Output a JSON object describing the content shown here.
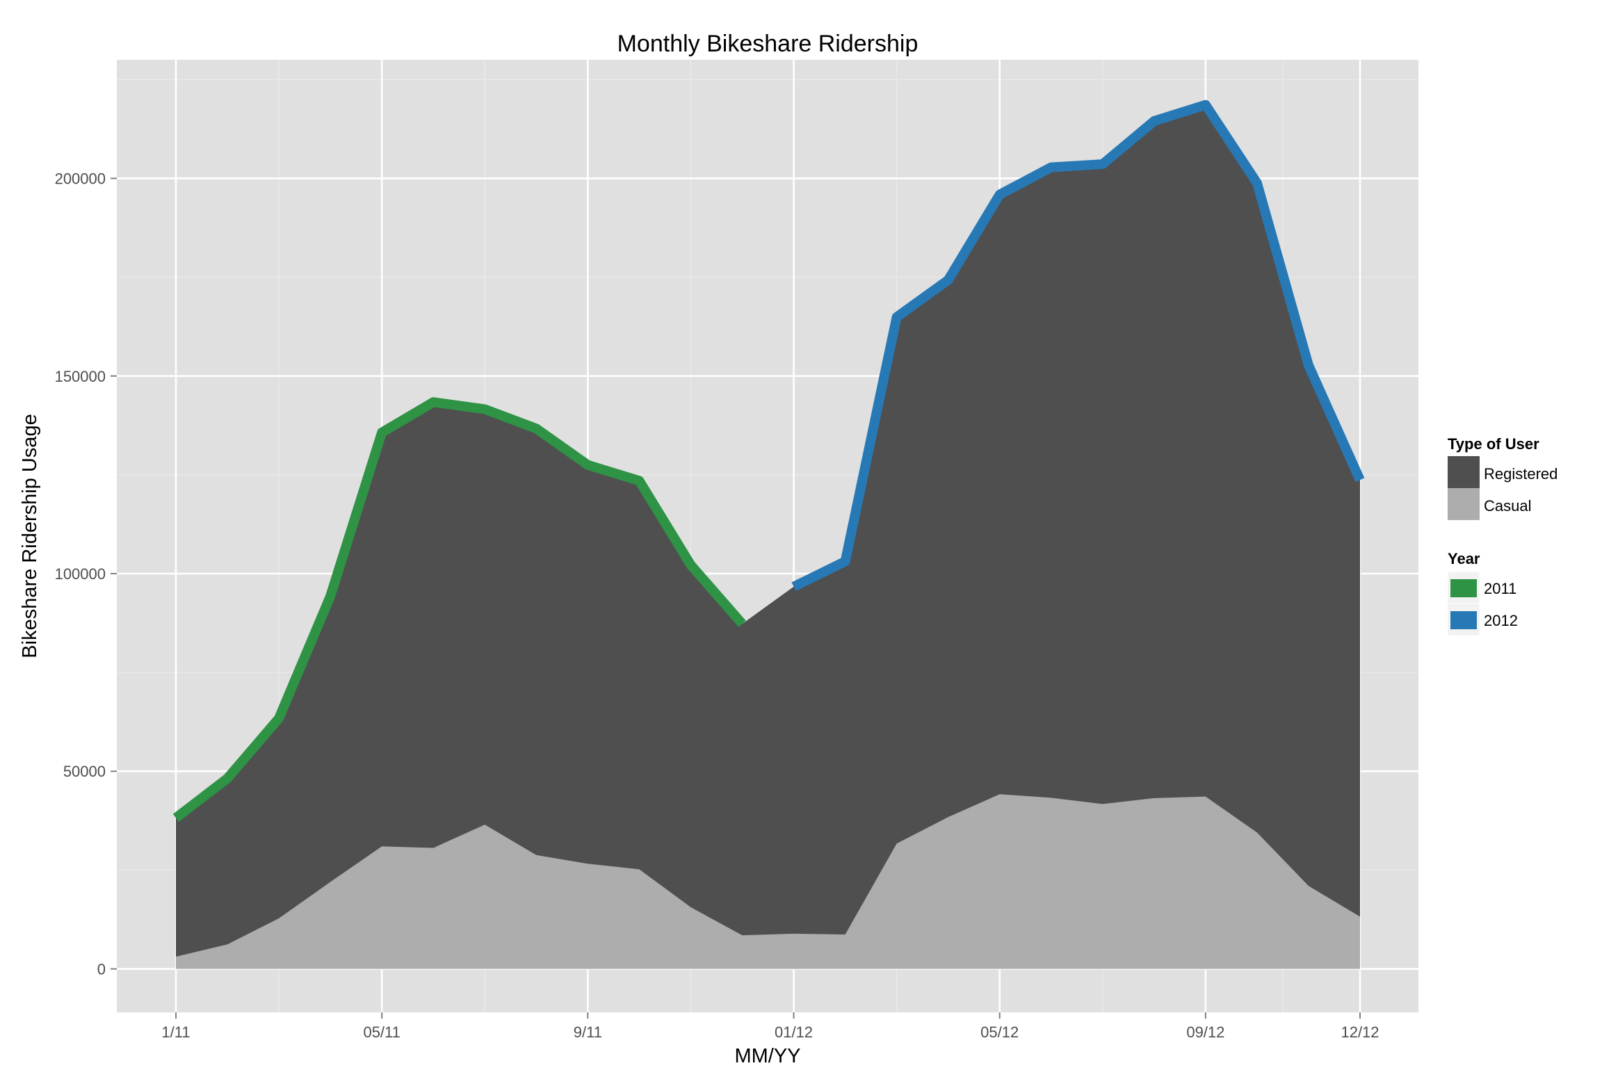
{
  "chart_data": {
    "type": "area",
    "title": "Monthly Bikeshare Ridership",
    "xlabel": "MM/YY",
    "ylabel": "Bikeshare Ridership Usage",
    "x": [
      "2011-01",
      "2011-02",
      "2011-03",
      "2011-04",
      "2011-05",
      "2011-06",
      "2011-07",
      "2011-08",
      "2011-09",
      "2011-10",
      "2011-11",
      "2011-12",
      "2012-01",
      "2012-02",
      "2012-03",
      "2012-04",
      "2012-05",
      "2012-06",
      "2012-07",
      "2012-08",
      "2012-09",
      "2012-10",
      "2012-11",
      "2012-12"
    ],
    "x_tick_labels": [
      {
        "x": "2011-01",
        "label": "1/11"
      },
      {
        "x": "2011-05",
        "label": "05/11"
      },
      {
        "x": "2011-09",
        "label": "9/11"
      },
      {
        "x": "2012-01",
        "label": "01/12"
      },
      {
        "x": "2012-05",
        "label": "05/12"
      },
      {
        "x": "2012-09",
        "label": "09/12"
      },
      {
        "x": "2012-12",
        "label": "12/12"
      }
    ],
    "ylim": [
      -11000,
      230000
    ],
    "y_ticks": [
      0,
      50000,
      100000,
      150000,
      200000
    ],
    "grid": true,
    "legend_position": "right",
    "legends": [
      {
        "title": "Type of User",
        "entries": [
          {
            "label": "Registered",
            "color": "#4f4f4f"
          },
          {
            "label": "Casual",
            "color": "#adadad"
          }
        ]
      },
      {
        "title": "Year",
        "entries": [
          {
            "label": "2011",
            "color": "#2e9345"
          },
          {
            "label": "2012",
            "color": "#2779b6"
          }
        ]
      }
    ],
    "series": [
      {
        "name": "Casual",
        "color": "#adadad",
        "values": [
          3100,
          6200,
          12800,
          22000,
          31000,
          30600,
          36500,
          28800,
          26600,
          25200,
          15600,
          8500,
          8900,
          8700,
          31700,
          38400,
          44200,
          43300,
          41700,
          43200,
          43600,
          34500,
          21000,
          13200
        ]
      },
      {
        "name": "Registered",
        "color": "#4f4f4f",
        "total_values": [
          38200,
          48200,
          63400,
          94300,
          135700,
          143400,
          141600,
          136700,
          127500,
          123500,
          102200,
          87300,
          96700,
          103100,
          164900,
          174300,
          195900,
          202800,
          203600,
          214500,
          218600,
          198800,
          152700,
          123700
        ]
      },
      {
        "name": "2011",
        "color": "#2e9345",
        "x_range": [
          "2011-01",
          "2011-12"
        ]
      },
      {
        "name": "2012",
        "color": "#2779b6",
        "x_range": [
          "2012-01",
          "2012-12"
        ]
      }
    ]
  }
}
